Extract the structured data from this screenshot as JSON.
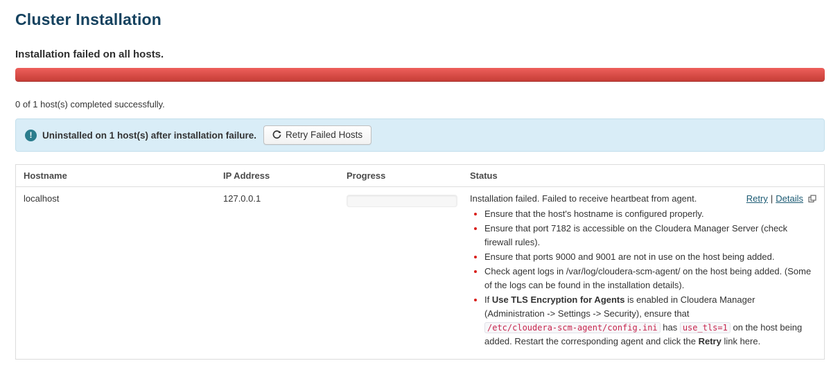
{
  "page": {
    "title": "Cluster Installation",
    "subtitle": "Installation failed on all hosts.",
    "progress_summary": "0 of 1 host(s) completed successfully."
  },
  "overall_progress": {
    "percent": 100,
    "state": "danger"
  },
  "alert": {
    "icon": "info-circle-icon",
    "message": "Uninstalled on 1 host(s) after installation failure.",
    "retry_button_label": "Retry Failed Hosts",
    "retry_button_icon": "refresh-icon"
  },
  "table": {
    "columns": [
      "Hostname",
      "IP Address",
      "Progress",
      "Status"
    ],
    "rows": [
      {
        "hostname": "localhost",
        "ip": "127.0.0.1",
        "progress_percent": 0,
        "status": {
          "summary": "Installation failed. Failed to receive heartbeat from agent.",
          "links": [
            {
              "label": "Retry"
            },
            {
              "label": "Details",
              "external_icon": "external-link-icon"
            }
          ],
          "link_separator": "|",
          "bullets": [
            [
              {
                "t": "Ensure that the host's hostname is configured properly."
              }
            ],
            [
              {
                "t": "Ensure that port 7182 is accessible on the Cloudera Manager Server (check firewall rules)."
              }
            ],
            [
              {
                "t": "Ensure that ports 9000 and 9001 are not in use on the host being added."
              }
            ],
            [
              {
                "t": "Check agent logs in /var/log/cloudera-scm-agent/ on the host being added. (Some of the logs can be found in the installation details)."
              }
            ],
            [
              {
                "t": "If "
              },
              {
                "t": "Use TLS Encryption for Agents",
                "s": "bold"
              },
              {
                "t": " is enabled in Cloudera Manager (Administration -> Settings -> Security), ensure that "
              },
              {
                "t": "/etc/cloudera-scm-agent/config.ini",
                "s": "code"
              },
              {
                "t": " has "
              },
              {
                "t": "use_tls=1",
                "s": "code"
              },
              {
                "t": " on the host being added. Restart the corresponding agent and click the "
              },
              {
                "t": "Retry",
                "s": "bold"
              },
              {
                "t": " link here."
              }
            ]
          ]
        }
      }
    ]
  },
  "colors": {
    "title": "#15425f",
    "error_text": "#d9201c",
    "progress_danger_top": "#ee5f5b",
    "progress_danger_bottom": "#c43c35",
    "alert_background": "#d9edf7",
    "alert_border": "#c3dfec",
    "info_icon": "#2b7d8d",
    "link": "#1b5a73"
  }
}
